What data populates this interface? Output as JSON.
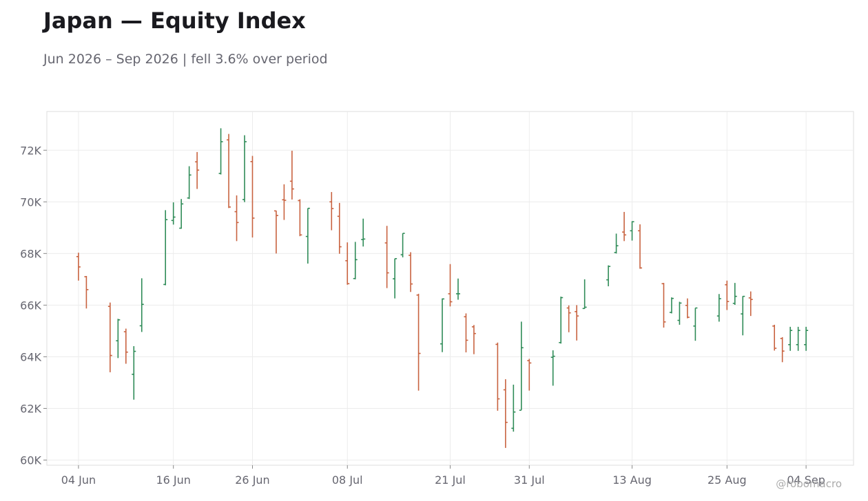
{
  "header": {
    "title": "Japan — Equity Index",
    "subtitle": "Jun 2026 – Sep 2026 | fell 3.6% over period"
  },
  "watermark": "@robomacro",
  "colors": {
    "up": "#2e8b57",
    "down": "#c8623f",
    "grid": "#ececec",
    "axis_text": "#666670",
    "frame": "#dddddd"
  },
  "chart_data": {
    "type": "ohlc",
    "title": "Japan — Equity Index",
    "subtitle": "Jun 2026 – Sep 2026 | fell 3.6% over period",
    "xlabel": "",
    "ylabel": "",
    "ylim": [
      59800,
      73500
    ],
    "xlim": [
      "2026-05-31",
      "2026-09-10"
    ],
    "yticks": [
      60000,
      62000,
      64000,
      66000,
      68000,
      70000,
      72000
    ],
    "ytick_labels": [
      "60K",
      "62K",
      "64K",
      "66K",
      "68K",
      "70K",
      "72K"
    ],
    "xticks": [
      "2026-06-04",
      "2026-06-16",
      "2026-06-26",
      "2026-07-08",
      "2026-07-21",
      "2026-07-31",
      "2026-08-13",
      "2026-08-25",
      "2026-09-04"
    ],
    "xtick_labels": [
      "04 Jun",
      "16 Jun",
      "26 Jun",
      "08 Jul",
      "21 Jul",
      "31 Jul",
      "13 Aug",
      "25 Aug",
      "04 Sep"
    ],
    "grid": true,
    "series": [
      {
        "dates": [
          "2026-06-04",
          "2026-06-05",
          "2026-06-08",
          "2026-06-09",
          "2026-06-10",
          "2026-06-11",
          "2026-06-12",
          "2026-06-15",
          "2026-06-16",
          "2026-06-17",
          "2026-06-18",
          "2026-06-19",
          "2026-06-22",
          "2026-06-23",
          "2026-06-24",
          "2026-06-25",
          "2026-06-26",
          "2026-06-29",
          "2026-06-30",
          "2026-07-01",
          "2026-07-02",
          "2026-07-03",
          "2026-07-06",
          "2026-07-07",
          "2026-07-08",
          "2026-07-09",
          "2026-07-10",
          "2026-07-13",
          "2026-07-14",
          "2026-07-15",
          "2026-07-16",
          "2026-07-17",
          "2026-07-20",
          "2026-07-21",
          "2026-07-22",
          "2026-07-23",
          "2026-07-24",
          "2026-07-27",
          "2026-07-28",
          "2026-07-29",
          "2026-07-30",
          "2026-07-31",
          "2026-08-03",
          "2026-08-04",
          "2026-08-05",
          "2026-08-06",
          "2026-08-07",
          "2026-08-10",
          "2026-08-11",
          "2026-08-12",
          "2026-08-13",
          "2026-08-14",
          "2026-08-17",
          "2026-08-18",
          "2026-08-19",
          "2026-08-20",
          "2026-08-21",
          "2026-08-24",
          "2026-08-25",
          "2026-08-26",
          "2026-08-27",
          "2026-08-28",
          "2026-08-31",
          "2026-09-01",
          "2026-09-02",
          "2026-09-03",
          "2026-09-04"
        ],
        "open": [
          67880,
          67100,
          65950,
          64620,
          64970,
          63320,
          65200,
          66800,
          69280,
          68980,
          70150,
          71550,
          71100,
          72400,
          69620,
          70090,
          71560,
          69650,
          70080,
          70800,
          70050,
          68660,
          70000,
          69440,
          67720,
          67030,
          68540,
          68410,
          67020,
          67950,
          67930,
          66390,
          64500,
          66440,
          66440,
          65550,
          65160,
          64480,
          62720,
          61230,
          61930,
          63850,
          63980,
          64550,
          65890,
          65750,
          65870,
          66980,
          68040,
          68830,
          68880,
          68880,
          66830,
          65720,
          65410,
          65990,
          65190,
          65580,
          66790,
          66070,
          65660,
          66280,
          65190,
          64710,
          64470,
          64470,
          64470
        ],
        "high": [
          68030,
          67130,
          66100,
          65470,
          65090,
          64410,
          67040,
          69680,
          69980,
          70110,
          71380,
          71930,
          72850,
          72630,
          70250,
          72580,
          71780,
          69660,
          70680,
          71980,
          70100,
          69750,
          70380,
          69960,
          68430,
          68450,
          69350,
          69070,
          67800,
          68780,
          68050,
          66440,
          66260,
          67590,
          67030,
          65680,
          65230,
          64550,
          63130,
          62920,
          65360,
          63920,
          64250,
          66330,
          65990,
          66000,
          67000,
          67540,
          68770,
          69610,
          69250,
          69130,
          66860,
          66300,
          66130,
          66260,
          65890,
          66430,
          66950,
          66860,
          66350,
          66530,
          65240,
          64760,
          65160,
          65160,
          65160
        ],
        "low": [
          66950,
          65870,
          63400,
          63950,
          63730,
          62340,
          64960,
          66770,
          69120,
          68960,
          70110,
          70500,
          71060,
          69760,
          68480,
          69990,
          68620,
          68000,
          69300,
          70090,
          68670,
          67610,
          68900,
          67990,
          66790,
          67000,
          68270,
          66660,
          66260,
          67850,
          66510,
          62690,
          64180,
          65950,
          66210,
          64170,
          64100,
          61910,
          60470,
          61100,
          61940,
          62690,
          62880,
          64510,
          64950,
          64630,
          65860,
          66730,
          68000,
          68480,
          68500,
          67410,
          65130,
          65680,
          65240,
          65490,
          64620,
          65360,
          65810,
          66010,
          64830,
          65580,
          64240,
          63790,
          64230,
          64230,
          64230
        ],
        "close": [
          67480,
          66600,
          64050,
          65430,
          64180,
          64210,
          66030,
          69310,
          69410,
          69920,
          71040,
          71230,
          72330,
          69800,
          69200,
          72330,
          69370,
          69470,
          70060,
          70500,
          68720,
          69750,
          69740,
          68260,
          66830,
          67760,
          68560,
          67250,
          67800,
          68780,
          66820,
          64130,
          66240,
          66130,
          66440,
          64640,
          64900,
          62370,
          61460,
          61860,
          64350,
          63760,
          64020,
          66290,
          65700,
          65580,
          65920,
          67500,
          68300,
          68720,
          69230,
          67440,
          65350,
          66260,
          66080,
          65530,
          65890,
          66250,
          66140,
          66340,
          66340,
          66220,
          64330,
          64220,
          65020,
          65020,
          65020
        ]
      }
    ]
  }
}
